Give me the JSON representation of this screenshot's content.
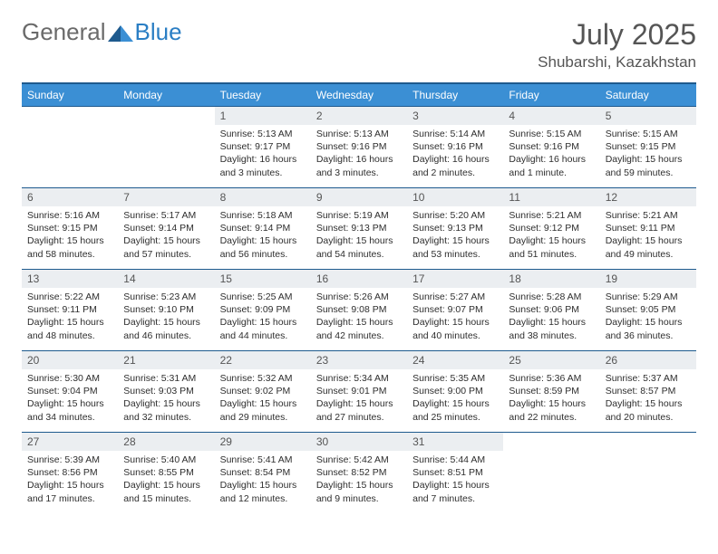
{
  "brand": {
    "part1": "General",
    "part2": "Blue"
  },
  "title": "July 2025",
  "location": "Shubarshi, Kazakhstan",
  "colors": {
    "header_bg": "#3b8fd4",
    "header_border": "#1e5a8e",
    "daynum_bg": "#ebeef1",
    "text": "#2e2e2e",
    "brand_gray": "#6a6a6a",
    "brand_blue": "#2a7ec4"
  },
  "weekdays": [
    "Sunday",
    "Monday",
    "Tuesday",
    "Wednesday",
    "Thursday",
    "Friday",
    "Saturday"
  ],
  "weeks": [
    [
      null,
      null,
      {
        "n": "1",
        "sr": "5:13 AM",
        "ss": "9:17 PM",
        "dl": "16 hours and 3 minutes."
      },
      {
        "n": "2",
        "sr": "5:13 AM",
        "ss": "9:16 PM",
        "dl": "16 hours and 3 minutes."
      },
      {
        "n": "3",
        "sr": "5:14 AM",
        "ss": "9:16 PM",
        "dl": "16 hours and 2 minutes."
      },
      {
        "n": "4",
        "sr": "5:15 AM",
        "ss": "9:16 PM",
        "dl": "16 hours and 1 minute."
      },
      {
        "n": "5",
        "sr": "5:15 AM",
        "ss": "9:15 PM",
        "dl": "15 hours and 59 minutes."
      }
    ],
    [
      {
        "n": "6",
        "sr": "5:16 AM",
        "ss": "9:15 PM",
        "dl": "15 hours and 58 minutes."
      },
      {
        "n": "7",
        "sr": "5:17 AM",
        "ss": "9:14 PM",
        "dl": "15 hours and 57 minutes."
      },
      {
        "n": "8",
        "sr": "5:18 AM",
        "ss": "9:14 PM",
        "dl": "15 hours and 56 minutes."
      },
      {
        "n": "9",
        "sr": "5:19 AM",
        "ss": "9:13 PM",
        "dl": "15 hours and 54 minutes."
      },
      {
        "n": "10",
        "sr": "5:20 AM",
        "ss": "9:13 PM",
        "dl": "15 hours and 53 minutes."
      },
      {
        "n": "11",
        "sr": "5:21 AM",
        "ss": "9:12 PM",
        "dl": "15 hours and 51 minutes."
      },
      {
        "n": "12",
        "sr": "5:21 AM",
        "ss": "9:11 PM",
        "dl": "15 hours and 49 minutes."
      }
    ],
    [
      {
        "n": "13",
        "sr": "5:22 AM",
        "ss": "9:11 PM",
        "dl": "15 hours and 48 minutes."
      },
      {
        "n": "14",
        "sr": "5:23 AM",
        "ss": "9:10 PM",
        "dl": "15 hours and 46 minutes."
      },
      {
        "n": "15",
        "sr": "5:25 AM",
        "ss": "9:09 PM",
        "dl": "15 hours and 44 minutes."
      },
      {
        "n": "16",
        "sr": "5:26 AM",
        "ss": "9:08 PM",
        "dl": "15 hours and 42 minutes."
      },
      {
        "n": "17",
        "sr": "5:27 AM",
        "ss": "9:07 PM",
        "dl": "15 hours and 40 minutes."
      },
      {
        "n": "18",
        "sr": "5:28 AM",
        "ss": "9:06 PM",
        "dl": "15 hours and 38 minutes."
      },
      {
        "n": "19",
        "sr": "5:29 AM",
        "ss": "9:05 PM",
        "dl": "15 hours and 36 minutes."
      }
    ],
    [
      {
        "n": "20",
        "sr": "5:30 AM",
        "ss": "9:04 PM",
        "dl": "15 hours and 34 minutes."
      },
      {
        "n": "21",
        "sr": "5:31 AM",
        "ss": "9:03 PM",
        "dl": "15 hours and 32 minutes."
      },
      {
        "n": "22",
        "sr": "5:32 AM",
        "ss": "9:02 PM",
        "dl": "15 hours and 29 minutes."
      },
      {
        "n": "23",
        "sr": "5:34 AM",
        "ss": "9:01 PM",
        "dl": "15 hours and 27 minutes."
      },
      {
        "n": "24",
        "sr": "5:35 AM",
        "ss": "9:00 PM",
        "dl": "15 hours and 25 minutes."
      },
      {
        "n": "25",
        "sr": "5:36 AM",
        "ss": "8:59 PM",
        "dl": "15 hours and 22 minutes."
      },
      {
        "n": "26",
        "sr": "5:37 AM",
        "ss": "8:57 PM",
        "dl": "15 hours and 20 minutes."
      }
    ],
    [
      {
        "n": "27",
        "sr": "5:39 AM",
        "ss": "8:56 PM",
        "dl": "15 hours and 17 minutes."
      },
      {
        "n": "28",
        "sr": "5:40 AM",
        "ss": "8:55 PM",
        "dl": "15 hours and 15 minutes."
      },
      {
        "n": "29",
        "sr": "5:41 AM",
        "ss": "8:54 PM",
        "dl": "15 hours and 12 minutes."
      },
      {
        "n": "30",
        "sr": "5:42 AM",
        "ss": "8:52 PM",
        "dl": "15 hours and 9 minutes."
      },
      {
        "n": "31",
        "sr": "5:44 AM",
        "ss": "8:51 PM",
        "dl": "15 hours and 7 minutes."
      },
      null,
      null
    ]
  ],
  "labels": {
    "sunrise": "Sunrise:",
    "sunset": "Sunset:",
    "daylight": "Daylight:"
  }
}
